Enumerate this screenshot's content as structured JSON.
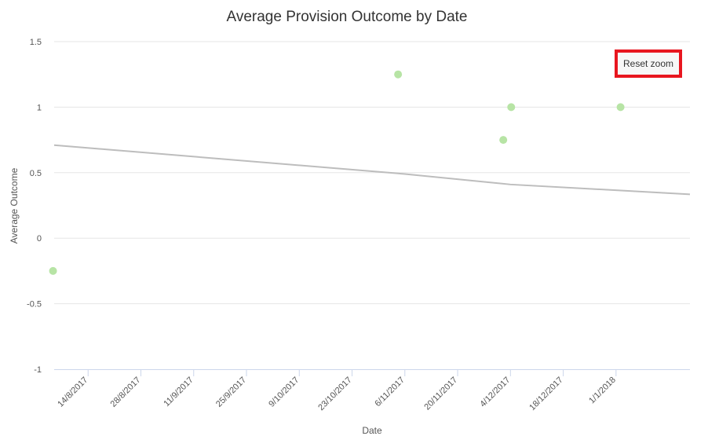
{
  "colors": {
    "point": "#b7e4a5",
    "trend": "#bdbdbd",
    "highlight": "#e8161f"
  },
  "reset_zoom_label": "Reset zoom",
  "chart_data": {
    "type": "scatter",
    "title": "Average Provision Outcome by Date",
    "xlabel": "Date",
    "ylabel": "Average Outcome",
    "ylim": [
      -1,
      1.5
    ],
    "yticks": [
      1.5,
      1,
      0.5,
      0,
      -0.5,
      -1
    ],
    "ytick_labels": [
      "1.5",
      "1",
      "0.5",
      "0",
      "-0.5",
      "-1"
    ],
    "xlim_days": [
      0,
      168.6
    ],
    "x_origin_date": "2017-08-05",
    "xticks_days": [
      9,
      23,
      37,
      51,
      65,
      79,
      93,
      107,
      121,
      135,
      149
    ],
    "xtick_labels": [
      "14/8/2017",
      "28/8/2017",
      "11/9/2017",
      "25/9/2017",
      "9/10/2017",
      "23/10/2017",
      "6/11/2017",
      "20/11/2017",
      "4/12/2017",
      "18/12/2017",
      "1/1/2018"
    ],
    "series": [
      {
        "name": "Average Outcome",
        "points": [
          {
            "x_days": -0.3,
            "y": -0.25
          },
          {
            "x_days": 91.2,
            "y": 1.25
          },
          {
            "x_days": 119.1,
            "y": 0.75
          },
          {
            "x_days": 121.2,
            "y": 1.0
          },
          {
            "x_days": 150.2,
            "y": 1.0
          }
        ]
      }
    ],
    "trendline": {
      "points": [
        {
          "x_days": 0,
          "y": 0.71
        },
        {
          "x_days": 93,
          "y": 0.49
        },
        {
          "x_days": 121,
          "y": 0.41
        },
        {
          "x_days": 168.6,
          "y": 0.335
        }
      ]
    }
  }
}
